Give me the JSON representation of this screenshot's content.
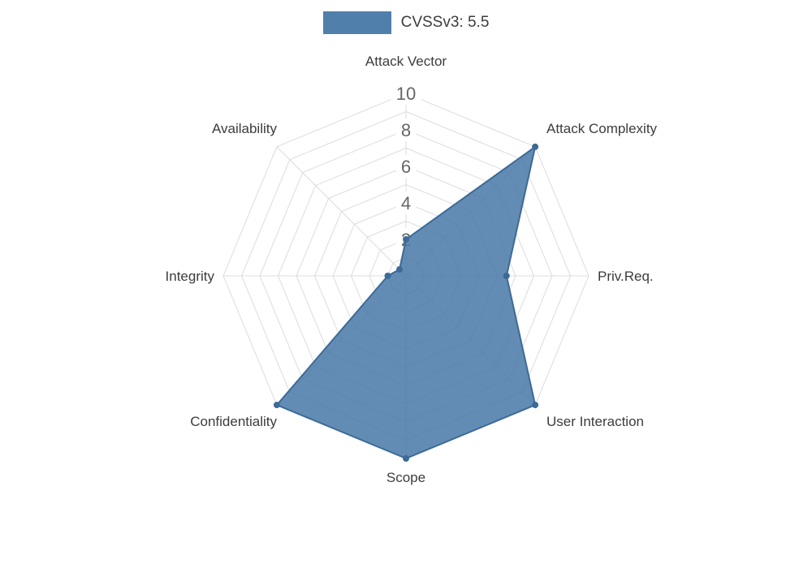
{
  "chart_data": {
    "type": "radar",
    "title": "CVSSv3: 5.5",
    "legend": {
      "position": "top",
      "label": "CVSSv3: 5.5"
    },
    "categories": [
      "Attack Vector",
      "Attack Complexity",
      "Priv.Req.",
      "User Interaction",
      "Scope",
      "Confidentiality",
      "Integrity",
      "Availability"
    ],
    "series": [
      {
        "name": "CVSSv3: 5.5",
        "values": [
          2,
          10,
          5.5,
          10,
          10,
          10,
          1,
          0.5
        ]
      }
    ],
    "scale": {
      "min": 0,
      "max": 10,
      "tick_step": 2,
      "tick_labels": [
        "2",
        "4",
        "6",
        "8",
        "10"
      ],
      "grid_rings": 10,
      "grid_shape": "polygon",
      "grid_on": true
    },
    "colors": {
      "series_fill": "#4878A8",
      "series_fill_opacity": 0.85,
      "series_border": "#3D6A96",
      "grid_line": "#DCDCDC",
      "tick_text": "#666666",
      "tick_backdrop": "#FFFFFF",
      "axis_label_text": "#3C3C3C",
      "background": "#FFFFFF"
    }
  }
}
